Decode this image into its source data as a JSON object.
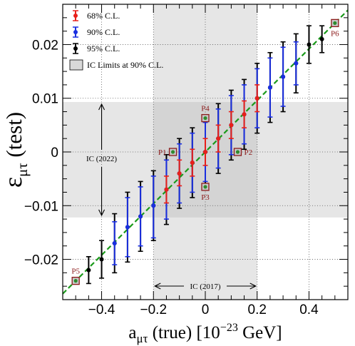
{
  "chart_data": {
    "type": "scatter",
    "xlabel_main": "a",
    "xlabel_sub": "μτ",
    "xlabel_rest": " (true) [10",
    "xlabel_exp": "−23",
    "xlabel_unit": " GeV]",
    "ylabel_main": "ε",
    "ylabel_sub": "μτ",
    "ylabel_rest": " (test)",
    "xlim": [
      -0.55,
      0.55
    ],
    "ylim": [
      -0.0275,
      0.0275
    ],
    "x_ticks": [
      {
        "v": -0.4,
        "label": "−0.4"
      },
      {
        "v": -0.2,
        "label": "−0.2"
      },
      {
        "v": 0,
        "label": "0"
      },
      {
        "v": 0.2,
        "label": "0.2"
      },
      {
        "v": 0.4,
        "label": "0.4"
      }
    ],
    "y_ticks": [
      {
        "v": -0.02,
        "label": "−0.02"
      },
      {
        "v": -0.01,
        "label": "−0.01"
      },
      {
        "v": 0,
        "label": "0"
      },
      {
        "v": 0.01,
        "label": "0.01"
      },
      {
        "v": 0.02,
        "label": "0.02"
      }
    ],
    "grid": "dotted",
    "legend_position": "top-left",
    "legend": [
      {
        "label": "68% C.L.",
        "color": "#e8201a",
        "kind": "errorbar"
      },
      {
        "label": "90% C.L.",
        "color": "#1a2fe0",
        "kind": "errorbar"
      },
      {
        "label": "95% C.L.",
        "color": "#000000",
        "kind": "errorbar"
      },
      {
        "label": "IC Limits at 90% C.L.",
        "color": "#d9d9d9",
        "kind": "box"
      }
    ],
    "reference_line": {
      "slope": 0.048,
      "intercept": 0,
      "color": "#1a9a1a",
      "style": "dashed"
    },
    "ic_bands": {
      "ic2017_x": [
        -0.2,
        0.2
      ],
      "ic2022_y": [
        -0.0122,
        0.0093
      ],
      "band_color": "#e6e6e6",
      "overlap_color": "#d4d4d4"
    },
    "annotations": {
      "ic2022": "IC (2022)",
      "ic2017": "IC (2017)"
    },
    "series": [
      {
        "name": "68% C.L.",
        "color": "#e8201a",
        "points": [
          {
            "x": -0.15,
            "y": -0.007,
            "lo": -0.0095,
            "hi": -0.0045
          },
          {
            "x": -0.1,
            "y": -0.004,
            "lo": -0.0063,
            "hi": -0.0015
          },
          {
            "x": -0.05,
            "y": -0.002,
            "lo": -0.0045,
            "hi": 0.0005
          },
          {
            "x": 0,
            "y": 0,
            "lo": -0.0025,
            "hi": 0.0025
          },
          {
            "x": 0.05,
            "y": 0.0025,
            "lo": 0.0,
            "hi": 0.005
          },
          {
            "x": 0.1,
            "y": 0.005,
            "lo": 0.0025,
            "hi": 0.0075
          },
          {
            "x": 0.15,
            "y": 0.007,
            "lo": 0.0045,
            "hi": 0.0095
          },
          {
            "x": 0.2,
            "y": 0.01,
            "lo": 0.0075,
            "hi": 0.0125
          }
        ]
      },
      {
        "name": "90% C.L.",
        "color": "#1a2fe0",
        "points": [
          {
            "x": -0.35,
            "y": -0.017,
            "lo": -0.021,
            "hi": -0.013
          },
          {
            "x": -0.3,
            "y": -0.014,
            "lo": -0.0195,
            "hi": -0.0085
          },
          {
            "x": -0.25,
            "y": -0.012,
            "lo": -0.0175,
            "hi": -0.0065
          },
          {
            "x": -0.2,
            "y": -0.01,
            "lo": -0.016,
            "hi": -0.0045
          },
          {
            "x": -0.15,
            "y": -0.007,
            "lo": -0.0125,
            "hi": -0.0015
          },
          {
            "x": -0.1,
            "y": -0.004,
            "lo": -0.0095,
            "hi": 0.0015
          },
          {
            "x": -0.05,
            "y": -0.002,
            "lo": -0.0075,
            "hi": 0.0035
          },
          {
            "x": 0,
            "y": 0,
            "lo": -0.0055,
            "hi": 0.0055
          },
          {
            "x": 0.05,
            "y": 0.0025,
            "lo": -0.003,
            "hi": 0.008
          },
          {
            "x": 0.1,
            "y": 0.005,
            "lo": -0.0005,
            "hi": 0.0105
          },
          {
            "x": 0.15,
            "y": 0.007,
            "lo": 0.0015,
            "hi": 0.0125
          },
          {
            "x": 0.2,
            "y": 0.01,
            "lo": 0.0045,
            "hi": 0.0155
          },
          {
            "x": 0.25,
            "y": 0.012,
            "lo": 0.0065,
            "hi": 0.0175
          },
          {
            "x": 0.3,
            "y": 0.014,
            "lo": 0.0085,
            "hi": 0.0195
          },
          {
            "x": 0.35,
            "y": 0.0165,
            "lo": 0.0125,
            "hi": 0.0205
          }
        ]
      },
      {
        "name": "95% C.L.",
        "color": "#000000",
        "points": [
          {
            "x": -0.45,
            "y": -0.022,
            "lo": -0.0245,
            "hi": -0.0195
          },
          {
            "x": -0.4,
            "y": -0.02,
            "lo": -0.0235,
            "hi": -0.0165
          },
          {
            "x": -0.35,
            "y": -0.017,
            "lo": -0.0225,
            "hi": -0.0115
          },
          {
            "x": -0.3,
            "y": -0.014,
            "lo": -0.0205,
            "hi": -0.0075
          },
          {
            "x": -0.25,
            "y": -0.012,
            "lo": -0.0185,
            "hi": -0.0055
          },
          {
            "x": -0.2,
            "y": -0.01,
            "lo": -0.0165,
            "hi": -0.0035
          },
          {
            "x": -0.15,
            "y": -0.007,
            "lo": -0.0135,
            "hi": -0.0005
          },
          {
            "x": -0.1,
            "y": -0.004,
            "lo": -0.0105,
            "hi": 0.0025
          },
          {
            "x": -0.05,
            "y": -0.002,
            "lo": -0.0085,
            "hi": 0.0045
          },
          {
            "x": 0,
            "y": 0,
            "lo": -0.0065,
            "hi": 0.0065
          },
          {
            "x": 0.05,
            "y": 0.0025,
            "lo": -0.004,
            "hi": 0.009
          },
          {
            "x": 0.1,
            "y": 0.005,
            "lo": -0.0015,
            "hi": 0.0115
          },
          {
            "x": 0.15,
            "y": 0.007,
            "lo": 0.0005,
            "hi": 0.0135
          },
          {
            "x": 0.2,
            "y": 0.01,
            "lo": 0.0035,
            "hi": 0.0165
          },
          {
            "x": 0.25,
            "y": 0.012,
            "lo": 0.0055,
            "hi": 0.0185
          },
          {
            "x": 0.3,
            "y": 0.014,
            "lo": 0.0075,
            "hi": 0.0205
          },
          {
            "x": 0.35,
            "y": 0.0165,
            "lo": 0.011,
            "hi": 0.022
          },
          {
            "x": 0.4,
            "y": 0.02,
            "lo": 0.0165,
            "hi": 0.0235
          },
          {
            "x": 0.45,
            "y": 0.021,
            "lo": 0.0185,
            "hi": 0.0235
          }
        ]
      }
    ],
    "labeled_points": [
      {
        "name": "P1",
        "x": -0.125,
        "y": 0,
        "label_side": "left"
      },
      {
        "name": "P2",
        "x": 0.125,
        "y": 0,
        "label_side": "right"
      },
      {
        "name": "P3",
        "x": 0,
        "y": -0.0065,
        "label_side": "below"
      },
      {
        "name": "P4",
        "x": 0,
        "y": 0.0063,
        "label_side": "above"
      },
      {
        "name": "P5",
        "x": -0.5,
        "y": -0.024,
        "label_side": "above"
      },
      {
        "name": "P6",
        "x": 0.5,
        "y": 0.024,
        "label_side": "below"
      }
    ]
  }
}
